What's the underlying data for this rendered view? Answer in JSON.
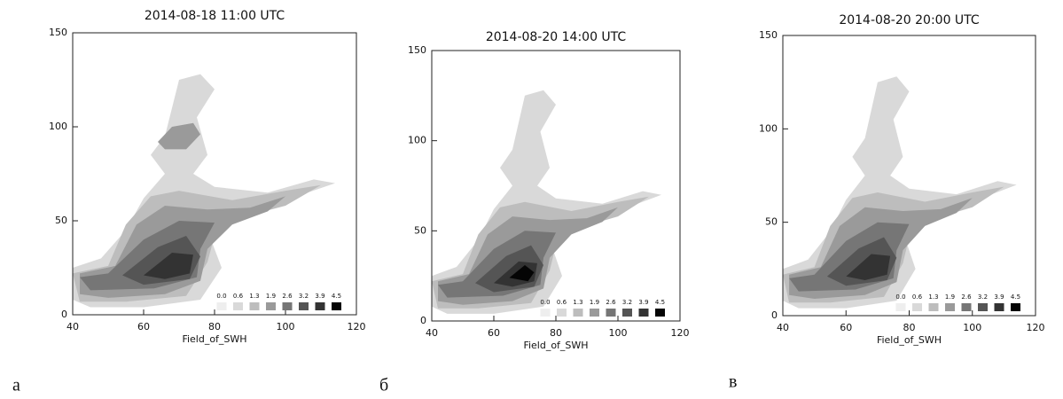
{
  "chart_data": [
    {
      "type": "contour",
      "title": "2014-08-18 11:00 UTC",
      "xlabel": "Field_of_SWH",
      "panel_label": "а",
      "xlim": [
        40,
        120
      ],
      "ylim": [
        0,
        150
      ],
      "xticks": [
        40,
        60,
        80,
        100,
        120
      ],
      "yticks": [
        0,
        50,
        100,
        150
      ],
      "levels": [
        {
          "value": 0,
          "label": "0.0"
        },
        0.6,
        1.3,
        1.9,
        2.6,
        3.2,
        3.9,
        4.5
      ],
      "colors": [
        "#eeeeee",
        "#d9d9d9",
        "#bdbdbd",
        "#9a9a9a",
        "#767676",
        "#555555",
        "#333333",
        "#050505"
      ]
    },
    {
      "type": "contour",
      "title": "2014-08-20 14:00 UTC",
      "xlabel": "Field_of_SWH",
      "panel_label": "б",
      "xlim": [
        40,
        120
      ],
      "ylim": [
        0,
        150
      ],
      "xticks": [
        40,
        60,
        80,
        100,
        120
      ],
      "yticks": [
        0,
        50,
        100,
        150
      ],
      "levels": [
        {
          "value": 0,
          "label": "0.0"
        },
        0.6,
        1.3,
        1.9,
        2.6,
        3.2,
        3.9,
        4.5
      ],
      "colors": [
        "#eeeeee",
        "#d9d9d9",
        "#bdbdbd",
        "#9a9a9a",
        "#767676",
        "#555555",
        "#333333",
        "#050505"
      ]
    },
    {
      "type": "contour",
      "title": "2014-08-20 20:00 UTC",
      "xlabel": "Field_of_SWH",
      "panel_label": "в",
      "xlim": [
        40,
        120
      ],
      "ylim": [
        0,
        150
      ],
      "xticks": [
        40,
        60,
        80,
        100,
        120
      ],
      "yticks": [
        0,
        50,
        100,
        150
      ],
      "levels": [
        {
          "value": 0,
          "label": "0.0"
        },
        0.6,
        1.3,
        1.9,
        2.6,
        3.2,
        3.9,
        4.5
      ],
      "colors": [
        "#eeeeee",
        "#d9d9d9",
        "#bdbdbd",
        "#9a9a9a",
        "#767676",
        "#555555",
        "#333333",
        "#050505"
      ]
    }
  ]
}
